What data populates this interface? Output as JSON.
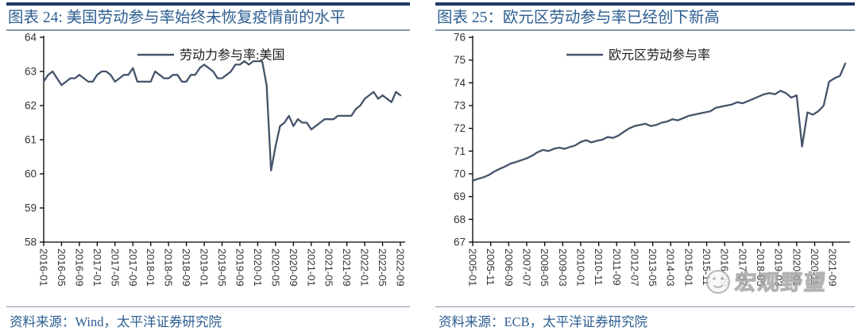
{
  "theme": {
    "line_color": "#44546A",
    "axis_color": "#000000",
    "tick_label_color": "#333333",
    "title_color": "#2D5E91",
    "topbar_color": "#1F3864",
    "rule_color": "#8496B0",
    "watermark_color": "#ADADAD",
    "background": "#FFFFFF"
  },
  "panels": [
    {
      "title": "图表 24: 美国劳动参与率始终未恢复疫情前的水平",
      "source_label": "资料来源：",
      "source": "Wind，太平洋证券研究院"
    },
    {
      "title": "图表 25：欧元区劳动参与率已经创下新高",
      "source_label": "资料来源：",
      "source": "ECB，太平洋证券研究院"
    }
  ],
  "watermark": {
    "text": "宏观野望",
    "icon": "smiley-face"
  },
  "chart_data": [
    {
      "type": "line",
      "title": "图表 24: 美国劳动参与率始终未恢复疫情前的水平",
      "legend": [
        "劳动力参与率:美国"
      ],
      "ylim": [
        58,
        64
      ],
      "ytick_step": 1,
      "grid": false,
      "legend_position": "top-center",
      "x_start": "2016-01",
      "x_frequency": "monthly",
      "x_units_per_point": 1,
      "x_units_per_tick": 4,
      "x_tick_labels": [
        "2016-01",
        "2016-05",
        "2016-09",
        "2017-01",
        "2017-05",
        "2017-09",
        "2018-01",
        "2018-05",
        "2018-09",
        "2019-01",
        "2019-05",
        "2019-09",
        "2020-01",
        "2020-05",
        "2020-09",
        "2021-01",
        "2021-05",
        "2021-09",
        "2022-01",
        "2022-05",
        "2022-09"
      ],
      "values": [
        62.7,
        62.9,
        63.0,
        62.8,
        62.6,
        62.7,
        62.8,
        62.8,
        62.9,
        62.8,
        62.7,
        62.7,
        62.9,
        63.0,
        63.0,
        62.9,
        62.7,
        62.8,
        62.9,
        62.9,
        63.1,
        62.7,
        62.7,
        62.7,
        62.7,
        63.0,
        62.9,
        62.8,
        62.8,
        62.9,
        62.9,
        62.7,
        62.7,
        62.9,
        62.9,
        63.1,
        63.2,
        63.1,
        63.0,
        62.8,
        62.8,
        62.9,
        63.0,
        63.2,
        63.2,
        63.3,
        63.2,
        63.3,
        63.3,
        63.3,
        62.6,
        60.1,
        60.8,
        61.4,
        61.5,
        61.7,
        61.4,
        61.6,
        61.5,
        61.5,
        61.3,
        61.4,
        61.5,
        61.6,
        61.6,
        61.6,
        61.7,
        61.7,
        61.7,
        61.7,
        61.9,
        62.0,
        62.2,
        62.3,
        62.4,
        62.2,
        62.3,
        62.2,
        62.1,
        62.4,
        62.3
      ],
      "source": "Wind，太平洋证券研究院"
    },
    {
      "type": "line",
      "title": "图表 25：欧元区劳动参与率已经创下新高",
      "legend": [
        "欧元区劳动参与率"
      ],
      "ylim": [
        67,
        76
      ],
      "ytick_step": 1,
      "grid": false,
      "legend_position": "top-center",
      "x_start": "2005-01",
      "x_frequency": "quarterly",
      "x_units_per_point": 3,
      "x_units_per_tick": 10,
      "x_tick_labels": [
        "2005-01",
        "2005-11",
        "2006-09",
        "2007-07",
        "2008-05",
        "2009-03",
        "2010-01",
        "2010-11",
        "2011-09",
        "2012-07",
        "2013-05",
        "2014-03",
        "2015-01",
        "2015-11",
        "2016-09",
        "2017-07",
        "2018-05",
        "2019-03",
        "2020-01",
        "2020-11",
        "2021-09"
      ],
      "values": [
        69.7,
        69.78,
        69.85,
        69.95,
        70.1,
        70.22,
        70.32,
        70.45,
        70.52,
        70.6,
        70.68,
        70.8,
        70.95,
        71.05,
        71.0,
        71.1,
        71.15,
        71.1,
        71.18,
        71.25,
        71.4,
        71.48,
        71.38,
        71.45,
        71.5,
        71.62,
        71.58,
        71.68,
        71.85,
        72.0,
        72.1,
        72.15,
        72.2,
        72.1,
        72.15,
        72.25,
        72.3,
        72.4,
        72.35,
        72.45,
        72.55,
        72.6,
        72.65,
        72.7,
        72.75,
        72.9,
        72.95,
        73.0,
        73.05,
        73.15,
        73.1,
        73.2,
        73.3,
        73.4,
        73.5,
        73.55,
        73.5,
        73.65,
        73.55,
        73.35,
        73.45,
        71.2,
        72.7,
        72.6,
        72.75,
        73.0,
        74.05,
        74.2,
        74.3,
        74.85
      ],
      "source": "ECB，太平洋证券研究院"
    }
  ]
}
